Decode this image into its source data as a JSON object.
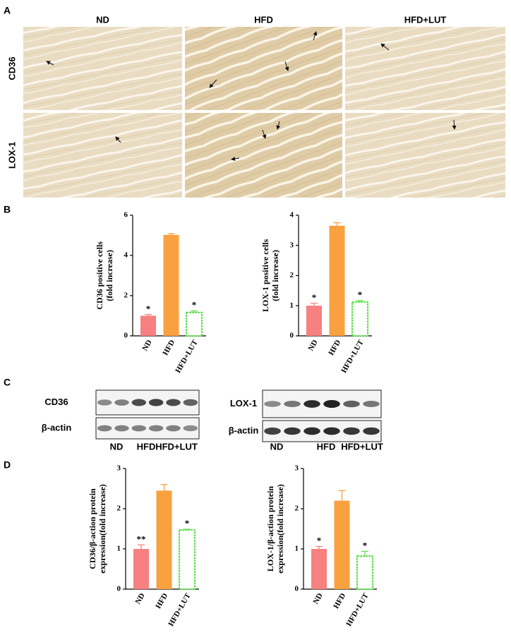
{
  "panel_labels": [
    "A",
    "B",
    "C",
    "D"
  ],
  "histology": {
    "columns": [
      "ND",
      "HFD",
      "HFD+LUT"
    ],
    "rows": [
      "CD36",
      "LOX-1"
    ]
  },
  "blots": [
    {
      "proteins": [
        "CD36",
        "β-actin"
      ],
      "lanes": [
        "ND",
        "HFD",
        "HFD+LUT"
      ]
    },
    {
      "proteins": [
        "LOX-1",
        "β-actin"
      ],
      "lanes": [
        "ND",
        "HFD",
        "HFD+LUT"
      ]
    }
  ],
  "chart_data": [
    {
      "type": "bar",
      "ylabel": [
        "CD36 positive cells",
        "(fold increase)"
      ],
      "categories": [
        "ND",
        "HFD",
        "HFD+LUT"
      ],
      "values": [
        1.0,
        5.02,
        1.16
      ],
      "errors": [
        0.06,
        0.06,
        0.08
      ],
      "annotations": [
        "*",
        null,
        "*"
      ],
      "colors": [
        "#f78080",
        "#f9a03f",
        "#66dd55"
      ],
      "hollow": [
        false,
        false,
        true
      ],
      "ylim": [
        0,
        6
      ],
      "yticks": [
        0,
        2,
        4,
        6
      ]
    },
    {
      "type": "bar",
      "ylabel": [
        "LOX-1 positive cells",
        "(fold increase)"
      ],
      "categories": [
        "ND",
        "HFD",
        "HFD+LUT"
      ],
      "values": [
        1.0,
        3.65,
        1.12
      ],
      "errors": [
        0.08,
        0.1,
        0.05
      ],
      "annotations": [
        "*",
        null,
        "*"
      ],
      "colors": [
        "#f78080",
        "#f9a03f",
        "#66dd55"
      ],
      "hollow": [
        false,
        false,
        true
      ],
      "ylim": [
        0,
        4
      ],
      "yticks": [
        0,
        1,
        2,
        3,
        4
      ]
    },
    {
      "type": "bar",
      "ylabel": [
        "CD36/β-action protein",
        "expression(fold increase)"
      ],
      "categories": [
        "ND",
        "HFD",
        "HFD+LUT"
      ],
      "values": [
        1.0,
        2.45,
        1.47
      ],
      "errors": [
        0.1,
        0.15,
        0.02
      ],
      "annotations": [
        "**",
        null,
        "*"
      ],
      "colors": [
        "#f78080",
        "#f9a03f",
        "#66dd55"
      ],
      "hollow": [
        false,
        false,
        true
      ],
      "ylim": [
        0,
        3
      ],
      "yticks": [
        0,
        1,
        2,
        3
      ]
    },
    {
      "type": "bar",
      "ylabel": [
        "LOX-1/β-action protein",
        "expression(fold increase)"
      ],
      "categories": [
        "ND",
        "HFD",
        "HFD+LUT"
      ],
      "values": [
        1.0,
        2.2,
        0.82
      ],
      "errors": [
        0.06,
        0.25,
        0.12
      ],
      "annotations": [
        "*",
        null,
        "*"
      ],
      "colors": [
        "#f78080",
        "#f9a03f",
        "#66dd55"
      ],
      "hollow": [
        false,
        false,
        true
      ],
      "ylim": [
        0,
        3
      ],
      "yticks": [
        0,
        1,
        2,
        3
      ]
    }
  ]
}
